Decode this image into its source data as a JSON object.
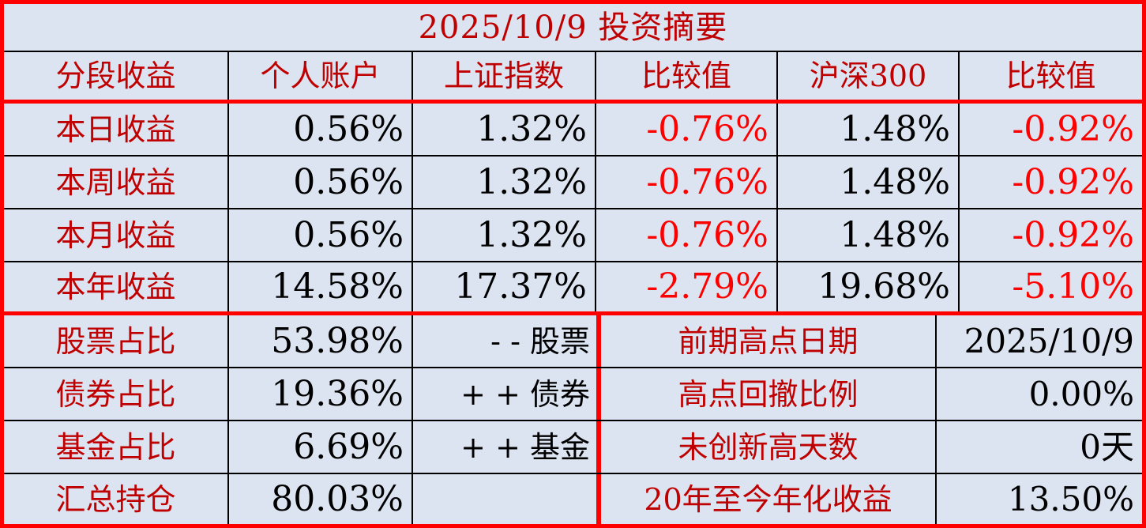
{
  "title": "2025/10/9 投资摘要",
  "table": {
    "headers": [
      "分段收益",
      "个人账户",
      "上证指数",
      "比较值",
      "沪深300",
      "比较值"
    ],
    "rows": [
      {
        "label": "本日收益",
        "personal": "0.56%",
        "sse": "1.32%",
        "diff_sse": "-0.76%",
        "csi300": "1.48%",
        "diff_csi300": "-0.92%"
      },
      {
        "label": "本周收益",
        "personal": "0.56%",
        "sse": "1.32%",
        "diff_sse": "-0.76%",
        "csi300": "1.48%",
        "diff_csi300": "-0.92%"
      },
      {
        "label": "本月收益",
        "personal": "0.56%",
        "sse": "1.32%",
        "diff_sse": "-0.76%",
        "csi300": "1.48%",
        "diff_csi300": "-0.92%"
      },
      {
        "label": "本年收益",
        "personal": "14.58%",
        "sse": "17.37%",
        "diff_sse": "-2.79%",
        "csi300": "19.68%",
        "diff_csi300": "-5.10%"
      }
    ]
  },
  "allocation": {
    "rows": [
      {
        "label": "股票占比",
        "value": "53.98%",
        "note": "- - 股票"
      },
      {
        "label": "债券占比",
        "value": "19.36%",
        "note": "+ + 债券"
      },
      {
        "label": "基金占比",
        "value": "6.69%",
        "note": "+ + 基金"
      },
      {
        "label": "汇总持仓",
        "value": "80.03%",
        "note": ""
      }
    ]
  },
  "stats": {
    "rows": [
      {
        "label": "前期高点日期",
        "value": "2025/10/9"
      },
      {
        "label": "高点回撤比例",
        "value": "0.00%"
      },
      {
        "label": "未创新高天数",
        "value": "0天"
      },
      {
        "label": "20年至今年化收益",
        "value": "13.50%"
      }
    ]
  },
  "colors": {
    "background": "#dbe4f0",
    "label_red": "#c00000",
    "negative_red": "#ff0000",
    "value_black": "#000000",
    "grid_line_black": "#000000",
    "accent_border_red": "#ff0000"
  }
}
